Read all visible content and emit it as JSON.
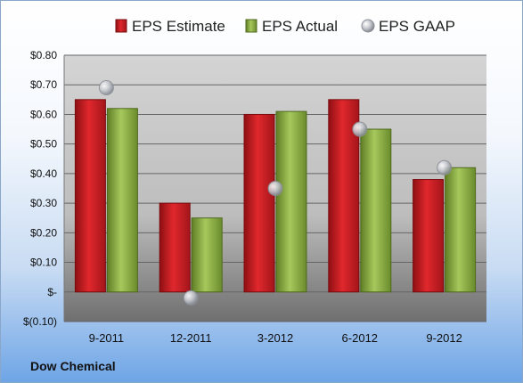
{
  "chart_data": {
    "type": "bar",
    "categories": [
      "9-2011",
      "12-2011",
      "3-2012",
      "6-2012",
      "9-2012"
    ],
    "series": [
      {
        "name": "EPS Estimate",
        "values": [
          0.65,
          0.3,
          0.6,
          0.65,
          0.38
        ],
        "color": "#cc1f24"
      },
      {
        "name": "EPS Actual",
        "values": [
          0.62,
          0.25,
          0.61,
          0.55,
          0.42
        ],
        "color": "#8fb34a"
      }
    ],
    "scatter_series": {
      "name": "EPS GAAP",
      "values": [
        0.69,
        -0.02,
        0.35,
        0.55,
        0.42
      ],
      "color": "#b8bcc4"
    },
    "ylim": [
      -0.1,
      0.8
    ],
    "ytick_values": [
      0.8,
      0.7,
      0.6,
      0.5,
      0.4,
      0.3,
      0.2,
      0.1,
      0.0,
      -0.1
    ],
    "ytick_labels": [
      "$0.80",
      "$0.70",
      "$0.60",
      "$0.50",
      "$0.40",
      "$0.30",
      "$0.20",
      "$0.10",
      "$-",
      "$(0.10)"
    ],
    "legend_position": "top",
    "grid": true
  },
  "company_label": "Dow Chemical"
}
